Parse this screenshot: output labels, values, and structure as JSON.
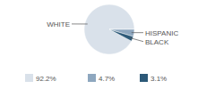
{
  "chart_data": {
    "type": "pie",
    "categories": [
      "WHITE",
      "HISPANIC",
      "BLACK"
    ],
    "values": [
      92.2,
      4.7,
      3.1
    ],
    "value_labels": [
      "92.2%",
      "4.7%",
      "3.1%"
    ],
    "data_labels": true,
    "colors": [
      "#d9e1ea",
      "#8ea7bf",
      "#2c5978"
    ]
  }
}
